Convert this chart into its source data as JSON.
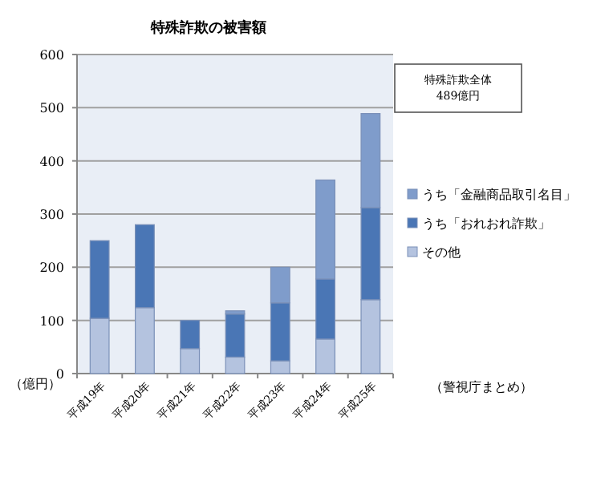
{
  "chart_data": {
    "type": "bar",
    "title": "特殊詐欺の被害額",
    "ylabel": "（億円）",
    "categories": [
      "平成19年",
      "平成20年",
      "平成21年",
      "平成22年",
      "平成23年",
      "平成24年",
      "平成25年"
    ],
    "stacked": true,
    "series": [
      {
        "name": "その他",
        "color": "#b4c3df",
        "values": [
          104,
          124,
          47,
          31,
          24,
          65,
          139
        ]
      },
      {
        "name": "うち「おれおれ詐欺」",
        "color": "#4a76b5",
        "values": [
          146,
          156,
          53,
          81,
          109,
          113,
          173
        ]
      },
      {
        "name": "うち「金融商品取引名目」",
        "color": "#7f9ccb",
        "values": [
          0,
          0,
          0,
          6,
          67,
          186,
          177
        ]
      }
    ],
    "ylim": [
      0,
      600
    ],
    "yticks": [
      0,
      100,
      200,
      300,
      400,
      500,
      600
    ],
    "grid": "y",
    "legend": "right",
    "annotations": [
      "特殊詐欺全体\n489億円",
      "（警視庁まとめ）"
    ]
  }
}
